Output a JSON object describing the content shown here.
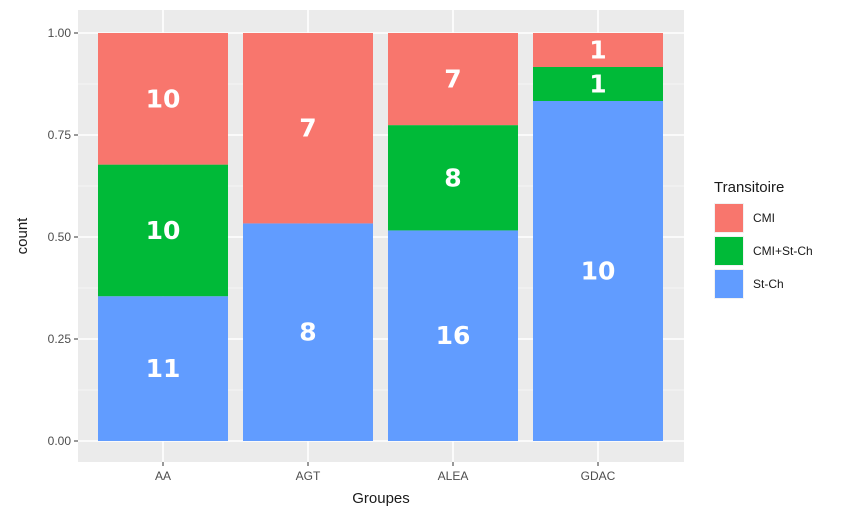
{
  "chart_data": {
    "type": "bar",
    "stacked": true,
    "normalized": true,
    "categories": [
      "AA",
      "AGT",
      "ALEA",
      "GDAC"
    ],
    "series": [
      {
        "name": "St-Ch",
        "color": "#619CFF",
        "counts": [
          11,
          8,
          16,
          10
        ]
      },
      {
        "name": "CMI+St-Ch",
        "color": "#00BA38",
        "counts": [
          10,
          0,
          8,
          1
        ]
      },
      {
        "name": "CMI",
        "color": "#F8766D",
        "counts": [
          10,
          7,
          7,
          1
        ]
      }
    ],
    "xlabel": "Groupes",
    "ylabel": "count",
    "ylim": [
      0,
      1
    ],
    "yticks": [
      "0.00",
      "0.25",
      "0.50",
      "0.75",
      "1.00"
    ],
    "legend": {
      "title": "Transitoire",
      "placement": "right",
      "items": [
        "CMI",
        "CMI+St-Ch",
        "St-Ch"
      ]
    },
    "grid": true,
    "panel_color": "#EBEBEB"
  }
}
